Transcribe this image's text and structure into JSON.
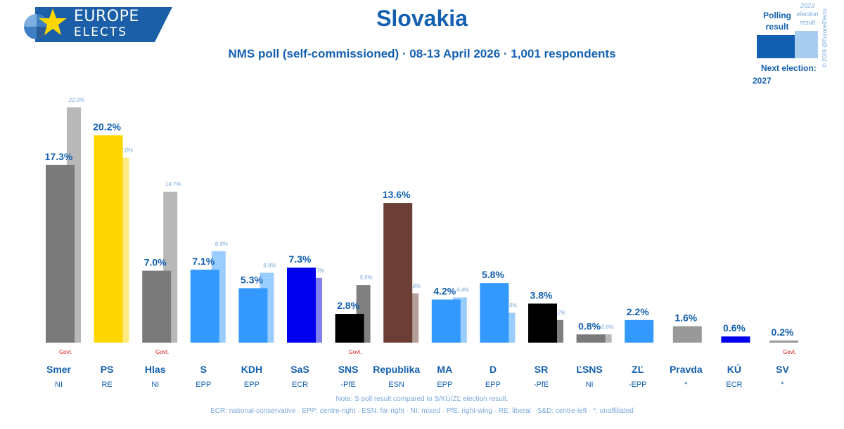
{
  "logo": {
    "line1": "EUROPE",
    "line2": "ELECTS"
  },
  "header": {
    "title": "Slovakia",
    "subtitle": "NMS poll (self-commissioned) · 08-13 April 2026 · 1,001 respondents"
  },
  "legend": {
    "poll_label": "Polling result",
    "result_label": "2023 election result",
    "next_election_label": "Next election:",
    "next_election_year": "2027",
    "copyright": "© 2026 @EuropeElects"
  },
  "footer": {
    "note": "Note: S poll result compared to S/KÚ/ZĽ election result.",
    "glossary": "ECR: national-conservative · EPP: centre-right · ESN: far-right · NI: mixed · PfE: right-wing · RE: liberal · S&D: centre-left · *: unaffiliated"
  },
  "chart_data": {
    "type": "bar",
    "title": "Slovakia",
    "subtitle": "NMS poll (self-commissioned) · 08-13 April 2026 · 1,001 respondents",
    "unit": "%",
    "ylim": [
      0,
      23
    ],
    "grid": false,
    "legend_position": "top-right",
    "series": [
      {
        "name": "Polling result"
      },
      {
        "name": "2023 election result"
      }
    ],
    "parties": [
      {
        "name": "Smer",
        "group": "NI",
        "poll": 17.3,
        "poll_label": "17.3%",
        "prev": 22.9,
        "prev_label": "22.9%",
        "govt": "Govt.",
        "color": "#7a7a7a",
        "prev_color": "#b8b8b8"
      },
      {
        "name": "PS",
        "group": "RE",
        "poll": 20.2,
        "poll_label": "20.2%",
        "prev": 18.0,
        "prev_label": "18.0%",
        "govt": "",
        "color": "#ffd700",
        "prev_color": "#ffeb80"
      },
      {
        "name": "Hlas",
        "group": "NI",
        "poll": 7.0,
        "poll_label": "7.0%",
        "prev": 14.7,
        "prev_label": "14.7%",
        "govt": "Govt.",
        "color": "#7a7a7a",
        "prev_color": "#b8b8b8"
      },
      {
        "name": "S",
        "group": "EPP",
        "poll": 7.1,
        "poll_label": "7.1%",
        "prev": 8.9,
        "prev_label": "8.9%",
        "govt": "",
        "color": "#3399ff",
        "prev_color": "#99ccff"
      },
      {
        "name": "KDH",
        "group": "EPP",
        "poll": 5.3,
        "poll_label": "5.3%",
        "prev": 6.8,
        "prev_label": "6.8%",
        "govt": "",
        "color": "#3399ff",
        "prev_color": "#99ccff"
      },
      {
        "name": "SaS",
        "group": "ECR",
        "poll": 7.3,
        "poll_label": "7.3%",
        "prev": 6.3,
        "prev_label": "6.3%",
        "govt": "",
        "color": "#0000ee",
        "prev_color": "#8080f0"
      },
      {
        "name": "SNS",
        "group": "-PfE",
        "poll": 2.8,
        "poll_label": "2.8%",
        "prev": 5.6,
        "prev_label": "5.6%",
        "govt": "Govt.",
        "color": "#000000",
        "prev_color": "#808080"
      },
      {
        "name": "Republika",
        "group": "ESN",
        "poll": 13.6,
        "poll_label": "13.6%",
        "prev": 4.8,
        "prev_label": "4.8%",
        "govt": "",
        "color": "#6b3f36",
        "prev_color": "#b59f9b"
      },
      {
        "name": "MA",
        "group": "EPP",
        "poll": 4.2,
        "poll_label": "4.2%",
        "prev": 4.4,
        "prev_label": "4.4%",
        "govt": "",
        "color": "#3399ff",
        "prev_color": "#99ccff"
      },
      {
        "name": "D",
        "group": "EPP",
        "poll": 5.8,
        "poll_label": "5.8%",
        "prev": 2.9,
        "prev_label": "2.9%",
        "govt": "",
        "color": "#3399ff",
        "prev_color": "#99ccff"
      },
      {
        "name": "SR",
        "group": "-PfE",
        "poll": 3.8,
        "poll_label": "3.8%",
        "prev": 2.2,
        "prev_label": "2.2%",
        "govt": "",
        "color": "#000000",
        "prev_color": "#808080"
      },
      {
        "name": "ĽSNS",
        "group": "NI",
        "poll": 0.8,
        "poll_label": "0.8%",
        "prev": 0.8,
        "prev_label": "0.8%",
        "govt": "",
        "color": "#7a7a7a",
        "prev_color": "#b8b8b8"
      },
      {
        "name": "ZĽ",
        "group": "-EPP",
        "poll": 2.2,
        "poll_label": "2.2%",
        "prev": null,
        "prev_label": "",
        "govt": "",
        "color": "#3399ff",
        "prev_color": "#99ccff"
      },
      {
        "name": "Pravda",
        "group": "*",
        "poll": 1.6,
        "poll_label": "1.6%",
        "prev": null,
        "prev_label": "",
        "govt": "",
        "color": "#999999",
        "prev_color": "#cccccc"
      },
      {
        "name": "KÚ",
        "group": "ECR",
        "poll": 0.6,
        "poll_label": "0.6%",
        "prev": null,
        "prev_label": "",
        "govt": "",
        "color": "#0000ee",
        "prev_color": "#8080f0"
      },
      {
        "name": "SV",
        "group": "*",
        "poll": 0.2,
        "poll_label": "0.2%",
        "prev": null,
        "prev_label": "",
        "govt": "Govt.",
        "color": "#999999",
        "prev_color": "#cccccc"
      }
    ]
  }
}
